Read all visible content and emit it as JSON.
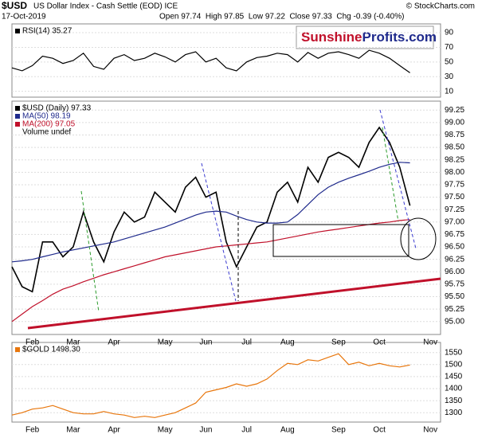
{
  "header": {
    "symbol": "$USD",
    "description": "US Dollar Index - Cash Settle (EOD) ICE",
    "date": "17-Oct-2019",
    "quote": "Open 97.74  High 97.85  Low 97.22  Close 97.33  Chg -0.39 (-0.40%)",
    "copyright": "© StockCharts.com",
    "logo_a": "Sunshine",
    "logo_b": "Profits.com"
  },
  "chart_data": [
    {
      "type": "line",
      "label": "RSI(14) 35.27",
      "ylim": [
        2,
        102
      ],
      "yticks": [
        90,
        70,
        50,
        30,
        10
      ],
      "grid": true,
      "series": [
        {
          "name": "RSI(14)",
          "color": "#000000",
          "values": [
            42,
            38,
            45,
            58,
            55,
            48,
            52,
            62,
            44,
            40,
            55,
            60,
            52,
            55,
            62,
            57,
            50,
            60,
            64,
            50,
            55,
            42,
            38,
            50,
            56,
            58,
            62,
            60,
            50,
            63,
            55,
            62,
            64,
            60,
            55,
            66,
            62,
            55,
            45,
            35.27
          ]
        }
      ]
    },
    {
      "type": "line",
      "ylim": [
        94.74,
        99.43
      ],
      "grid": true,
      "volume_label": "Volume undef",
      "yticks": [
        {
          "value": 95,
          "label": "95.00"
        },
        95.25,
        {
          "value": 95.5,
          "label": "95.50"
        },
        95.75,
        {
          "value": 96,
          "label": "96.00"
        },
        96.25,
        {
          "value": 96.5,
          "label": "96.50"
        },
        96.75,
        {
          "value": 97,
          "label": "97.00"
        },
        97.25,
        {
          "value": 97.5,
          "label": "97.50"
        },
        97.75,
        {
          "value": 98,
          "label": "98.00"
        },
        98.25,
        {
          "value": 98.5,
          "label": "98.50"
        },
        98.75,
        {
          "value": 99,
          "label": "99.00"
        },
        99.25
      ],
      "categories": [
        null,
        null,
        "Feb",
        null,
        null,
        null,
        "Mar",
        null,
        null,
        null,
        "Apr",
        null,
        null,
        null,
        null,
        "May",
        null,
        null,
        null,
        "Jun",
        null,
        null,
        null,
        "Jul",
        null,
        null,
        null,
        "Aug",
        null,
        null,
        null,
        null,
        "Sep",
        null,
        null,
        null,
        "Oct",
        null,
        null,
        null,
        null,
        "Nov",
        null
      ],
      "series": [
        {
          "name": "$USD (Daily) 97.33",
          "color": "#000000",
          "values": [
            96.1,
            95.7,
            95.6,
            96.6,
            96.6,
            96.3,
            96.5,
            97.2,
            96.6,
            96.2,
            96.8,
            97.2,
            97.0,
            97.1,
            97.6,
            97.4,
            97.2,
            97.7,
            97.9,
            97.5,
            97.6,
            96.6,
            96.1,
            96.5,
            96.9,
            97.0,
            97.6,
            97.8,
            97.4,
            98.1,
            97.8,
            98.3,
            98.4,
            98.3,
            98.1,
            98.6,
            98.9,
            98.6,
            98.1,
            97.33,
            null,
            null,
            null
          ]
        },
        {
          "name": "MA(50) 98.19",
          "color": "#1f2a8c",
          "values": [
            96.2,
            96.22,
            96.25,
            96.3,
            96.35,
            96.4,
            96.44,
            96.48,
            96.52,
            96.56,
            96.6,
            96.66,
            96.72,
            96.78,
            96.84,
            96.9,
            96.98,
            97.06,
            97.14,
            97.2,
            97.22,
            97.2,
            97.12,
            97.05,
            97.0,
            96.98,
            96.98,
            97.0,
            97.15,
            97.35,
            97.55,
            97.7,
            97.8,
            97.88,
            97.95,
            98.02,
            98.1,
            98.16,
            98.2,
            98.19,
            null,
            null,
            null
          ]
        },
        {
          "name": "MA(200) 97.05",
          "color": "#c0102a",
          "values": [
            95.0,
            95.15,
            95.3,
            95.42,
            95.55,
            95.65,
            95.72,
            95.8,
            95.87,
            95.94,
            96.0,
            96.06,
            96.12,
            96.18,
            96.24,
            96.3,
            96.34,
            96.38,
            96.42,
            96.46,
            96.5,
            96.52,
            96.54,
            96.56,
            96.58,
            96.6,
            96.64,
            96.68,
            96.72,
            96.76,
            96.8,
            96.83,
            96.86,
            96.89,
            96.92,
            96.95,
            96.98,
            97.0,
            97.03,
            97.05,
            null,
            null,
            null
          ]
        }
      ]
    },
    {
      "type": "line",
      "ylim": [
        1261,
        1592
      ],
      "yticks": [
        1300,
        1350,
        1400,
        1450,
        1500,
        1550
      ],
      "grid": true,
      "categories": [
        null,
        null,
        "Feb",
        null,
        null,
        null,
        "Mar",
        null,
        null,
        null,
        "Apr",
        null,
        null,
        null,
        null,
        "May",
        null,
        null,
        null,
        "Jun",
        null,
        null,
        null,
        "Jul",
        null,
        null,
        null,
        "Aug",
        null,
        null,
        null,
        null,
        "Sep",
        null,
        null,
        null,
        "Oct",
        null,
        null,
        null,
        null,
        "Nov",
        null
      ],
      "series": [
        {
          "name": "$GOLD 1498.30",
          "color": "#e8760c",
          "values": [
            1290,
            1300,
            1315,
            1320,
            1330,
            1315,
            1300,
            1295,
            1295,
            1305,
            1295,
            1290,
            1280,
            1285,
            1280,
            1290,
            1300,
            1320,
            1340,
            1385,
            1395,
            1405,
            1420,
            1410,
            1420,
            1440,
            1475,
            1505,
            1500,
            1520,
            1515,
            1530,
            1545,
            1500,
            1510,
            1495,
            1505,
            1495,
            1490,
            1498.3,
            null,
            null,
            null
          ]
        }
      ]
    }
  ]
}
